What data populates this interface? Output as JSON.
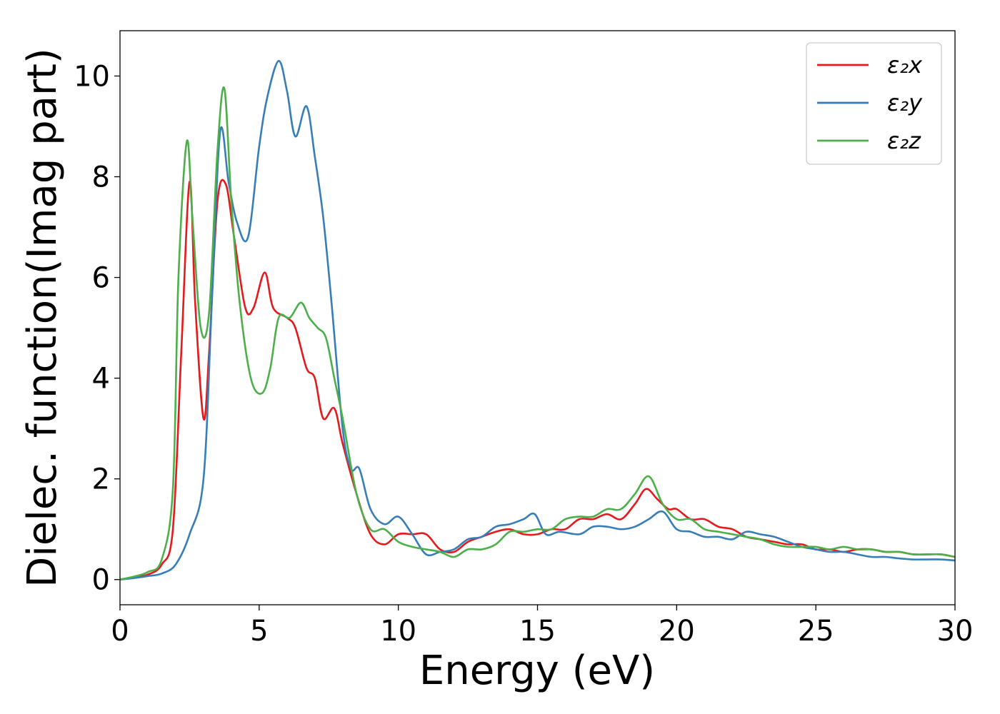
{
  "chart_data": {
    "type": "line",
    "title": "",
    "xlabel": "Energy (eV)",
    "ylabel": "Dielec. function(Imag part)",
    "xlim": [
      0,
      30
    ],
    "ylim": [
      -0.5,
      10.9
    ],
    "xticks": [
      0,
      5,
      10,
      15,
      20,
      25,
      30
    ],
    "yticks": [
      0,
      2,
      4,
      6,
      8,
      10
    ],
    "grid": false,
    "legend_position": "top-right",
    "series": [
      {
        "name": "ε₂x",
        "color": "#e41a1c",
        "points": [
          [
            0,
            0
          ],
          [
            0.5,
            0.05
          ],
          [
            1.0,
            0.1
          ],
          [
            1.5,
            0.3
          ],
          [
            1.9,
            1.0
          ],
          [
            2.2,
            4.5
          ],
          [
            2.5,
            7.9
          ],
          [
            2.7,
            5.5
          ],
          [
            3.0,
            3.2
          ],
          [
            3.2,
            4.5
          ],
          [
            3.5,
            7.5
          ],
          [
            3.8,
            7.85
          ],
          [
            4.1,
            6.8
          ],
          [
            4.5,
            5.4
          ],
          [
            4.8,
            5.4
          ],
          [
            5.2,
            6.1
          ],
          [
            5.5,
            5.4
          ],
          [
            6.0,
            5.2
          ],
          [
            6.3,
            5.0
          ],
          [
            6.7,
            4.2
          ],
          [
            7.0,
            4.0
          ],
          [
            7.3,
            3.2
          ],
          [
            7.7,
            3.4
          ],
          [
            8.0,
            2.7
          ],
          [
            8.5,
            1.7
          ],
          [
            9.0,
            0.9
          ],
          [
            9.5,
            0.7
          ],
          [
            10.0,
            0.9
          ],
          [
            10.5,
            0.9
          ],
          [
            11.0,
            0.9
          ],
          [
            11.5,
            0.6
          ],
          [
            12.0,
            0.55
          ],
          [
            12.5,
            0.75
          ],
          [
            13.0,
            0.85
          ],
          [
            13.5,
            0.95
          ],
          [
            14.0,
            1.0
          ],
          [
            14.5,
            0.9
          ],
          [
            15.0,
            0.9
          ],
          [
            15.5,
            1.0
          ],
          [
            16.0,
            1.0
          ],
          [
            16.5,
            1.2
          ],
          [
            17.0,
            1.2
          ],
          [
            17.5,
            1.3
          ],
          [
            18.0,
            1.2
          ],
          [
            18.5,
            1.5
          ],
          [
            18.9,
            1.8
          ],
          [
            19.3,
            1.6
          ],
          [
            19.7,
            1.4
          ],
          [
            20.0,
            1.4
          ],
          [
            20.5,
            1.2
          ],
          [
            21.0,
            1.2
          ],
          [
            21.5,
            1.05
          ],
          [
            22.0,
            1.0
          ],
          [
            22.5,
            0.85
          ],
          [
            23.0,
            0.8
          ],
          [
            23.5,
            0.75
          ],
          [
            24.0,
            0.7
          ],
          [
            24.5,
            0.7
          ],
          [
            25.0,
            0.6
          ],
          [
            25.5,
            0.6
          ],
          [
            26.0,
            0.55
          ],
          [
            26.5,
            0.6
          ],
          [
            27.0,
            0.6
          ],
          [
            27.5,
            0.55
          ],
          [
            28.0,
            0.55
          ],
          [
            28.5,
            0.5
          ],
          [
            29.0,
            0.5
          ],
          [
            29.5,
            0.5
          ],
          [
            30.0,
            0.45
          ]
        ]
      },
      {
        "name": "ε₂y",
        "color": "#377eb8",
        "points": [
          [
            0,
            0
          ],
          [
            0.5,
            0.03
          ],
          [
            1.0,
            0.07
          ],
          [
            1.5,
            0.12
          ],
          [
            2.0,
            0.3
          ],
          [
            2.5,
            0.9
          ],
          [
            3.0,
            2.0
          ],
          [
            3.3,
            5.5
          ],
          [
            3.6,
            8.9
          ],
          [
            3.9,
            7.9
          ],
          [
            4.2,
            7.1
          ],
          [
            4.6,
            6.8
          ],
          [
            5.0,
            8.6
          ],
          [
            5.3,
            9.6
          ],
          [
            5.7,
            10.3
          ],
          [
            6.0,
            9.7
          ],
          [
            6.3,
            8.8
          ],
          [
            6.7,
            9.4
          ],
          [
            7.0,
            8.4
          ],
          [
            7.3,
            7.2
          ],
          [
            7.6,
            5.5
          ],
          [
            8.0,
            3.0
          ],
          [
            8.3,
            2.2
          ],
          [
            8.6,
            2.2
          ],
          [
            9.0,
            1.4
          ],
          [
            9.5,
            1.1
          ],
          [
            10.0,
            1.25
          ],
          [
            10.5,
            0.9
          ],
          [
            11.0,
            0.5
          ],
          [
            11.5,
            0.55
          ],
          [
            12.0,
            0.6
          ],
          [
            12.5,
            0.8
          ],
          [
            13.0,
            0.85
          ],
          [
            13.5,
            1.05
          ],
          [
            14.0,
            1.1
          ],
          [
            14.5,
            1.2
          ],
          [
            14.9,
            1.3
          ],
          [
            15.3,
            0.9
          ],
          [
            15.8,
            0.95
          ],
          [
            16.5,
            0.9
          ],
          [
            17.0,
            1.05
          ],
          [
            17.5,
            1.05
          ],
          [
            18.0,
            1.0
          ],
          [
            18.5,
            1.05
          ],
          [
            19.0,
            1.2
          ],
          [
            19.5,
            1.35
          ],
          [
            20.0,
            1.0
          ],
          [
            20.5,
            0.95
          ],
          [
            21.0,
            0.85
          ],
          [
            21.5,
            0.85
          ],
          [
            22.0,
            0.8
          ],
          [
            22.5,
            0.95
          ],
          [
            23.0,
            0.9
          ],
          [
            23.5,
            0.85
          ],
          [
            24.0,
            0.75
          ],
          [
            24.5,
            0.65
          ],
          [
            25.0,
            0.6
          ],
          [
            25.5,
            0.55
          ],
          [
            26.0,
            0.55
          ],
          [
            26.5,
            0.5
          ],
          [
            27.0,
            0.45
          ],
          [
            27.5,
            0.45
          ],
          [
            28.0,
            0.42
          ],
          [
            28.5,
            0.4
          ],
          [
            29.0,
            0.4
          ],
          [
            29.5,
            0.4
          ],
          [
            30.0,
            0.38
          ]
        ]
      },
      {
        "name": "ε₂z",
        "color": "#4daf4a",
        "points": [
          [
            0,
            0
          ],
          [
            0.5,
            0.06
          ],
          [
            1.0,
            0.15
          ],
          [
            1.5,
            0.4
          ],
          [
            1.9,
            1.8
          ],
          [
            2.1,
            6.0
          ],
          [
            2.4,
            8.7
          ],
          [
            2.6,
            7.2
          ],
          [
            2.9,
            5.0
          ],
          [
            3.2,
            5.3
          ],
          [
            3.5,
            8.5
          ],
          [
            3.75,
            9.75
          ],
          [
            4.0,
            7.5
          ],
          [
            4.3,
            5.5
          ],
          [
            4.7,
            4.0
          ],
          [
            5.1,
            3.7
          ],
          [
            5.4,
            4.2
          ],
          [
            5.7,
            5.2
          ],
          [
            6.1,
            5.2
          ],
          [
            6.5,
            5.5
          ],
          [
            6.8,
            5.2
          ],
          [
            7.1,
            5.0
          ],
          [
            7.4,
            4.8
          ],
          [
            7.7,
            4.0
          ],
          [
            8.0,
            3.2
          ],
          [
            8.5,
            1.7
          ],
          [
            9.0,
            1.0
          ],
          [
            9.5,
            1.0
          ],
          [
            10.0,
            0.75
          ],
          [
            10.5,
            0.65
          ],
          [
            11.0,
            0.6
          ],
          [
            11.5,
            0.55
          ],
          [
            12.0,
            0.45
          ],
          [
            12.5,
            0.6
          ],
          [
            13.0,
            0.6
          ],
          [
            13.5,
            0.7
          ],
          [
            14.0,
            0.95
          ],
          [
            14.5,
            0.95
          ],
          [
            15.0,
            1.0
          ],
          [
            15.5,
            1.0
          ],
          [
            16.0,
            1.2
          ],
          [
            16.5,
            1.25
          ],
          [
            17.0,
            1.25
          ],
          [
            17.5,
            1.4
          ],
          [
            18.0,
            1.4
          ],
          [
            18.5,
            1.7
          ],
          [
            19.0,
            2.05
          ],
          [
            19.5,
            1.5
          ],
          [
            20.0,
            1.2
          ],
          [
            20.5,
            1.2
          ],
          [
            21.0,
            1.0
          ],
          [
            21.5,
            0.95
          ],
          [
            22.0,
            0.9
          ],
          [
            22.5,
            0.85
          ],
          [
            23.0,
            0.8
          ],
          [
            23.5,
            0.7
          ],
          [
            24.0,
            0.65
          ],
          [
            24.5,
            0.65
          ],
          [
            25.0,
            0.65
          ],
          [
            25.5,
            0.6
          ],
          [
            26.0,
            0.65
          ],
          [
            26.5,
            0.6
          ],
          [
            27.0,
            0.6
          ],
          [
            27.5,
            0.55
          ],
          [
            28.0,
            0.55
          ],
          [
            28.5,
            0.5
          ],
          [
            29.0,
            0.5
          ],
          [
            29.5,
            0.5
          ],
          [
            30.0,
            0.45
          ]
        ]
      }
    ]
  }
}
